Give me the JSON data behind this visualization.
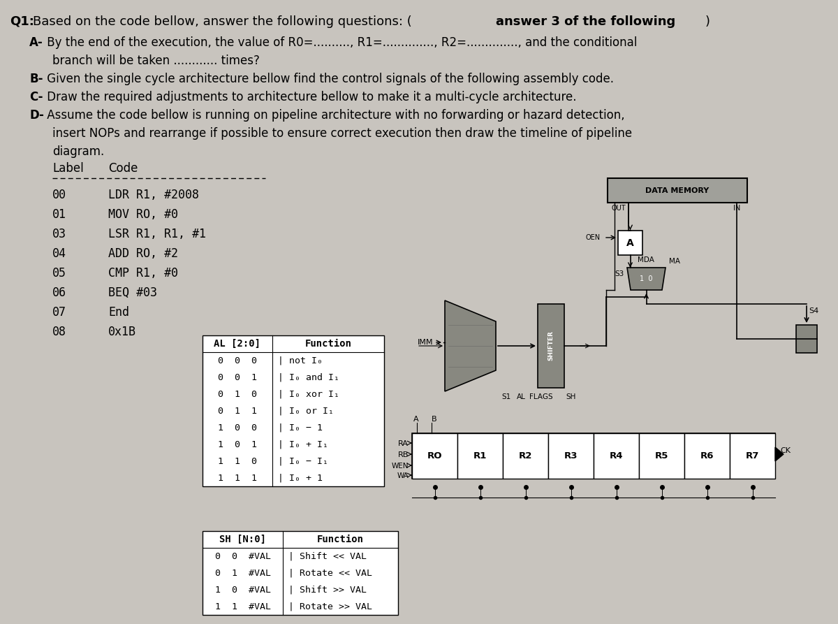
{
  "bg_color": "#c8c4be",
  "title_bold_part": "Q1:",
  "title_rest": " Based on the code bellow, answer the following questions: (",
  "title_bold2": "answer 3 of the following",
  "title_end": ")",
  "q_A_bold": "A-",
  "q_A_text": "  By the end of the execution, the value of R0=.........., R1=.............., R2=.............., and the conditional",
  "q_A_cont": "     branch will be taken ............ times?",
  "q_B_bold": "B-",
  "q_B_text": "  Given the single cycle architecture bellow find the control signals of the following assembly code.",
  "q_C_bold": "C-",
  "q_C_text": "  Draw the required adjustments to architecture bellow to make it a multi-cycle architecture.",
  "q_D_bold": "D-",
  "q_D_text": "  Assume the code bellow is running on pipeline architecture with no forwarding or hazard detection,",
  "q_D_cont1": "     insert NOPs and rearrange if possible to ensure correct execution then draw the timeline of pipeline",
  "q_D_cont2": "     diagram.",
  "code_lines": [
    [
      "00",
      "LDR R1, #2008"
    ],
    [
      "01",
      "MOV RO, #0"
    ],
    [
      "03",
      "LSR R1, R1, #1"
    ],
    [
      "04",
      "ADD RO, #2"
    ],
    [
      "05",
      "CMP R1, #0"
    ],
    [
      "06",
      "BEQ #03"
    ],
    [
      "07",
      "End"
    ],
    [
      "08",
      "0x1B"
    ]
  ],
  "al_rows": [
    [
      "0  0  0",
      "not I₀"
    ],
    [
      "0  0  1",
      "I₀ and I₁"
    ],
    [
      "0  1  0",
      "I₀ xor I₁"
    ],
    [
      "0  1  1",
      "I₀ or I₁"
    ],
    [
      "1  0  0",
      "I₀ − 1"
    ],
    [
      "1  0  1",
      "I₀ + I₁"
    ],
    [
      "1  1  0",
      "I₀ − I₁"
    ],
    [
      "1  1  1",
      "I₀ + 1"
    ]
  ],
  "sh_rows": [
    [
      "0  0  #VAL",
      "Shift << VAL"
    ],
    [
      "0  1  #VAL",
      "Rotate << VAL"
    ],
    [
      "1  0  #VAL",
      "Shift >> VAL"
    ],
    [
      "1  1  #VAL",
      "Rotate >> VAL"
    ]
  ],
  "reg_labels": [
    "RO",
    "R1",
    "R2",
    "R3",
    "R4",
    "R5",
    "R6",
    "R7"
  ]
}
